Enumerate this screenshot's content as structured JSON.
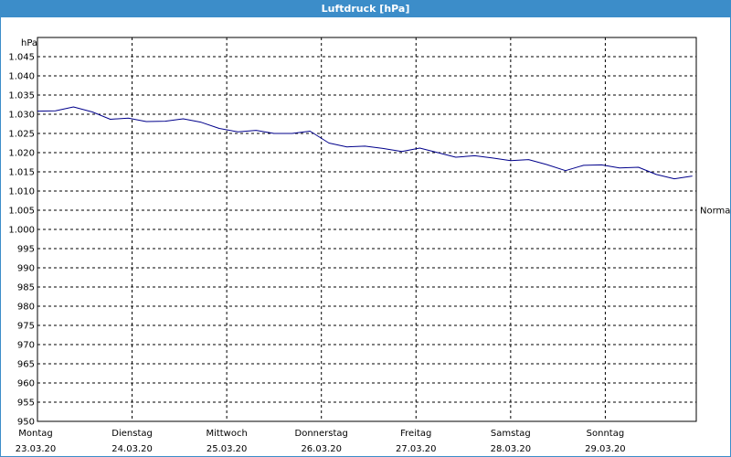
{
  "window": {
    "title": "Luftdruck [hPa]"
  },
  "colors": {
    "title_bar": "#3c8dc9",
    "series_line": "#00008b",
    "grid": "#000000"
  },
  "chart_data": {
    "type": "line",
    "title": "Luftdruck [hPa]",
    "ylabel": "hPa",
    "ylim": [
      950,
      1050
    ],
    "yticks": [
      {
        "value": 1045,
        "label": "1.045"
      },
      {
        "value": 1040,
        "label": "1.040"
      },
      {
        "value": 1035,
        "label": "1.035"
      },
      {
        "value": 1030,
        "label": "1.030"
      },
      {
        "value": 1025,
        "label": "1.025"
      },
      {
        "value": 1020,
        "label": "1.020"
      },
      {
        "value": 1015,
        "label": "1.015"
      },
      {
        "value": 1010,
        "label": "1.010"
      },
      {
        "value": 1005,
        "label": "1.005"
      },
      {
        "value": 1000,
        "label": "1.000"
      },
      {
        "value": 995,
        "label": "995"
      },
      {
        "value": 990,
        "label": "990"
      },
      {
        "value": 985,
        "label": "985"
      },
      {
        "value": 980,
        "label": "980"
      },
      {
        "value": 975,
        "label": "975"
      },
      {
        "value": 970,
        "label": "970"
      },
      {
        "value": 965,
        "label": "965"
      },
      {
        "value": 960,
        "label": "960"
      },
      {
        "value": 955,
        "label": "955"
      },
      {
        "value": 950,
        "label": "950"
      }
    ],
    "xlim": [
      0,
      7
    ],
    "xticks": [
      {
        "day": "Montag",
        "date": "23.03.20"
      },
      {
        "day": "Dienstag",
        "date": "24.03.20"
      },
      {
        "day": "Mittwoch",
        "date": "25.03.20"
      },
      {
        "day": "Donnerstag",
        "date": "26.03.20"
      },
      {
        "day": "Freitag",
        "date": "27.03.20"
      },
      {
        "day": "Samstag",
        "date": "28.03.20"
      },
      {
        "day": "Sonntag",
        "date": "29.03.20"
      }
    ],
    "reference_line": {
      "value": 1005,
      "label": "Normal"
    },
    "grid": true,
    "series": [
      {
        "x": [
          0,
          0.19,
          0.38,
          0.58,
          0.77,
          0.96,
          1.15,
          1.35,
          1.54,
          1.73,
          1.92,
          2.12,
          2.31,
          2.5,
          2.69,
          2.88,
          3.08,
          3.27,
          3.46,
          3.65,
          3.85,
          4.04,
          4.23,
          4.42,
          4.62,
          4.81,
          5.0,
          5.19,
          5.38,
          5.58,
          5.77,
          5.96,
          6.15,
          6.35,
          6.54,
          6.73,
          6.92
        ],
        "values": [
          1030.8,
          1030.9,
          1031.9,
          1030.6,
          1028.7,
          1029.0,
          1028.1,
          1028.2,
          1028.8,
          1027.9,
          1026.3,
          1025.4,
          1025.8,
          1025.0,
          1025.0,
          1025.6,
          1022.5,
          1021.5,
          1021.7,
          1021.1,
          1020.3,
          1021.2,
          1020.0,
          1018.8,
          1019.2,
          1018.6,
          1017.9,
          1018.2,
          1016.9,
          1015.3,
          1016.7,
          1016.8,
          1016.0,
          1016.2,
          1014.3,
          1013.2,
          1013.9
        ]
      }
    ]
  }
}
